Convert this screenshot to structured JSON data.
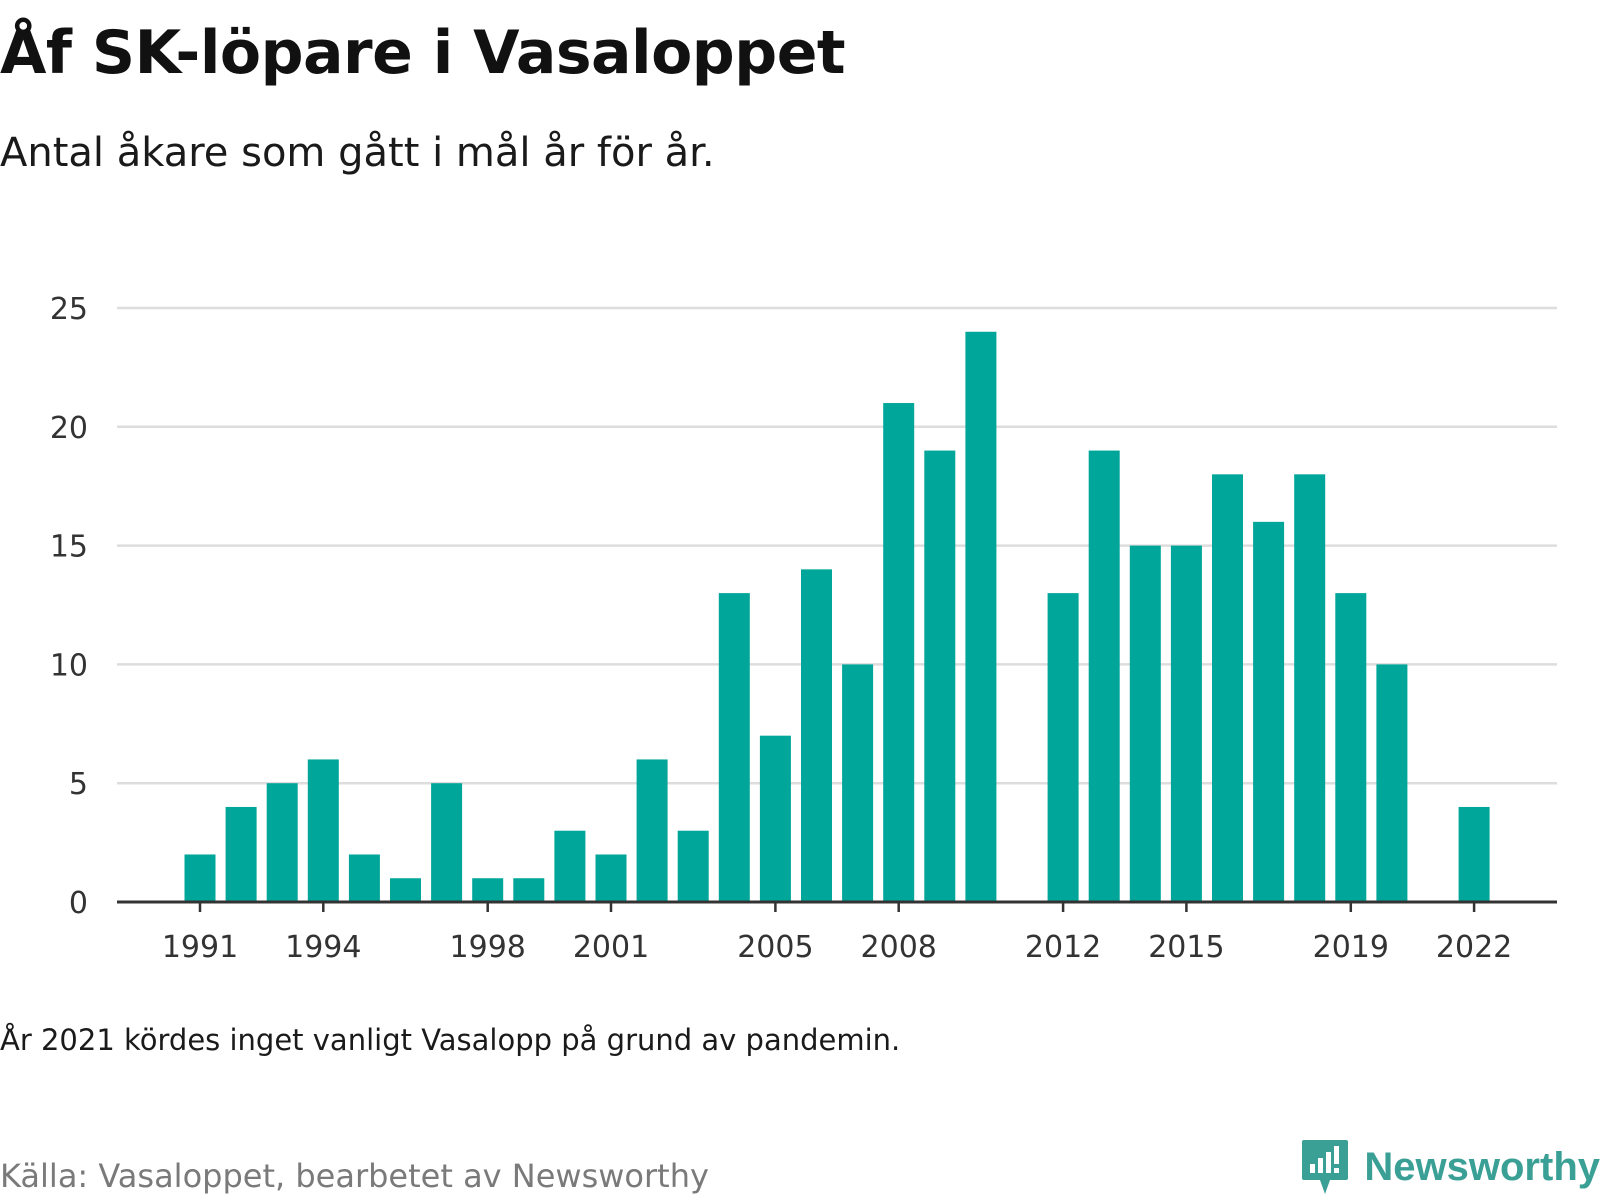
{
  "title": "Åf SK-löpare i Vasaloppet",
  "subtitle": "Antal åkare som gått i mål år för år.",
  "note": "År 2021 kördes inget vanligt Vasalopp på grund av pandemin.",
  "source": "Källa: Vasaloppet, bearbetet av Newsworthy",
  "logo": {
    "text": "Newsworthy",
    "icon": "newsworthy-logo-icon"
  },
  "colors": {
    "bar": "#00a69a",
    "grid": "#dddddd",
    "axis": "#333333",
    "logo": "#3a9f95"
  },
  "chart_data": {
    "type": "bar",
    "categories": [
      1991,
      1992,
      1993,
      1994,
      1995,
      1996,
      1997,
      1998,
      1999,
      2000,
      2001,
      2002,
      2003,
      2004,
      2005,
      2006,
      2007,
      2008,
      2009,
      2010,
      2011,
      2012,
      2013,
      2014,
      2015,
      2016,
      2017,
      2018,
      2019,
      2020,
      2021,
      2022
    ],
    "values": [
      2,
      4,
      5,
      6,
      2,
      1,
      5,
      1,
      1,
      3,
      2,
      6,
      3,
      13,
      7,
      14,
      10,
      21,
      19,
      24,
      null,
      13,
      19,
      15,
      15,
      18,
      16,
      18,
      13,
      10,
      null,
      4
    ],
    "x_tick_labels": [
      "1991",
      "1994",
      "1998",
      "2001",
      "2005",
      "2008",
      "2012",
      "2015",
      "2019",
      "2022"
    ],
    "y_ticks": [
      0,
      5,
      10,
      15,
      20,
      25
    ],
    "ylim": [
      0,
      25
    ],
    "grid": true,
    "legend": "none"
  }
}
